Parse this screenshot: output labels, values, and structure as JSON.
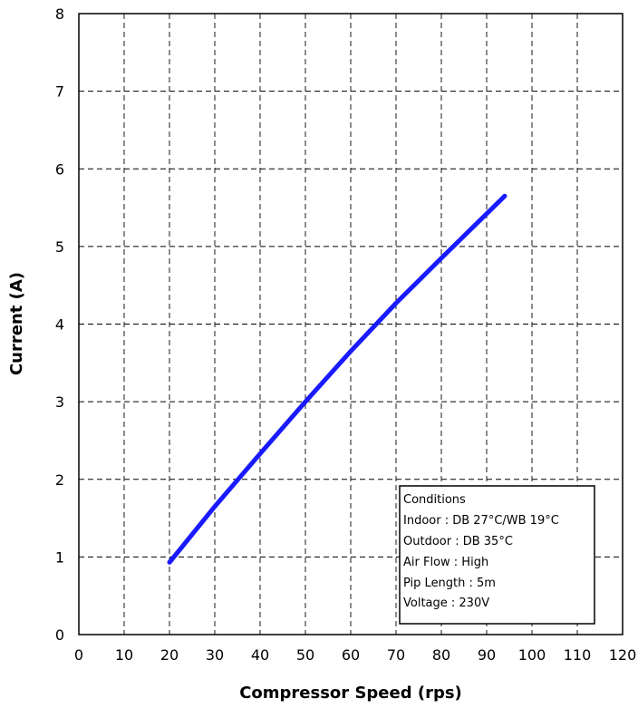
{
  "chart_data": {
    "type": "line",
    "title": "",
    "xlabel": "Compressor Speed (rps)",
    "ylabel": "Current (A)",
    "xlim": [
      0,
      120
    ],
    "ylim": [
      0,
      8
    ],
    "x_ticks": [
      0,
      10,
      20,
      30,
      40,
      50,
      60,
      70,
      80,
      90,
      100,
      110,
      120
    ],
    "y_ticks": [
      0,
      1,
      2,
      3,
      4,
      5,
      6,
      7,
      8
    ],
    "grid": true,
    "series": [
      {
        "color": "#1a1aff",
        "x": [
          20,
          30,
          40,
          50,
          60,
          70,
          80,
          94
        ],
        "y": [
          0.93,
          1.65,
          2.33,
          3.0,
          3.65,
          4.27,
          4.85,
          5.65
        ]
      }
    ],
    "annotation": {
      "lines": [
        "Conditions",
        "Indoor : DB 27°C/WB 19°C",
        "Outdoor : DB 35°C",
        "Air Flow : High",
        "Pip Length : 5m",
        "Voltage : 230V"
      ]
    }
  }
}
